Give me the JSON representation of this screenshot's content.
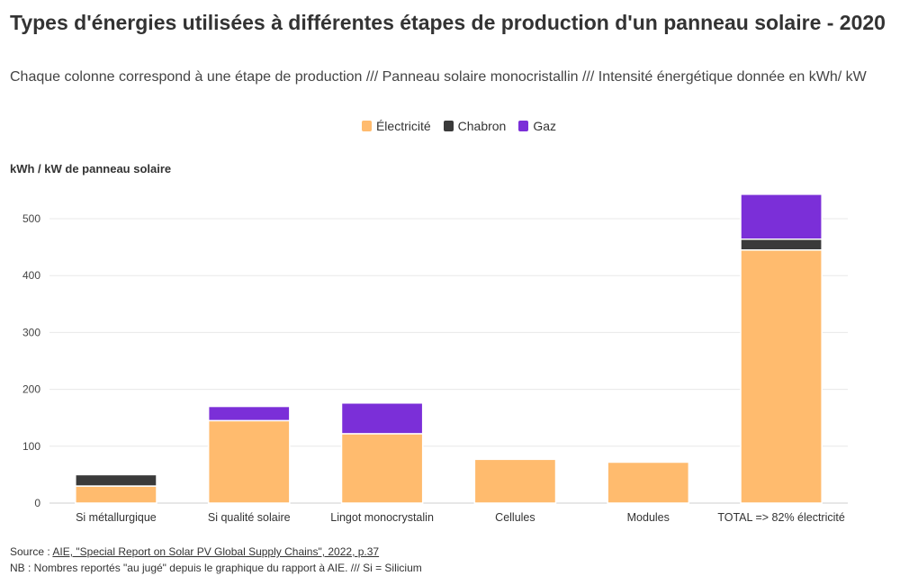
{
  "title": "Types d'énergies utilisées à différentes étapes de production d'un panneau solaire - 2020",
  "subtitle": "Chaque colonne correspond à une étape de production /// Panneau solaire monocristallin /// Intensité énergétique donnée en kWh/ kW",
  "footer": {
    "source_prefix": "Source : ",
    "source_link": "AIE, \"Special Report on Solar PV Global Supply Chains\", 2022, p.37",
    "note": "NB : Nombres reportés \"au jugé\" depuis le graphique du rapport à AIE. /// Si = Silicium"
  },
  "chart_data": {
    "type": "bar",
    "stacked": true,
    "ylabel": "kWh / kW de panneau solaire",
    "ylim": [
      0,
      540
    ],
    "yticks": [
      0,
      100,
      200,
      300,
      400,
      500
    ],
    "grid": true,
    "legend_position": "top-center",
    "categories": [
      "Si métallurgique",
      "Si qualité solaire",
      "Lingot monocrystalin",
      "Cellules",
      "Modules",
      "TOTAL => 82% électricité"
    ],
    "series": [
      {
        "name": "Électricité",
        "color": "#ffbb6e",
        "values": [
          30,
          145,
          122,
          77,
          72,
          445
        ]
      },
      {
        "name": "Chabron",
        "color": "#3a3a3a",
        "values": [
          20,
          0,
          0,
          0,
          0,
          19
        ]
      },
      {
        "name": "Gaz",
        "color": "#7b2fd8",
        "values": [
          0,
          25,
          54,
          0,
          0,
          79
        ]
      }
    ]
  }
}
